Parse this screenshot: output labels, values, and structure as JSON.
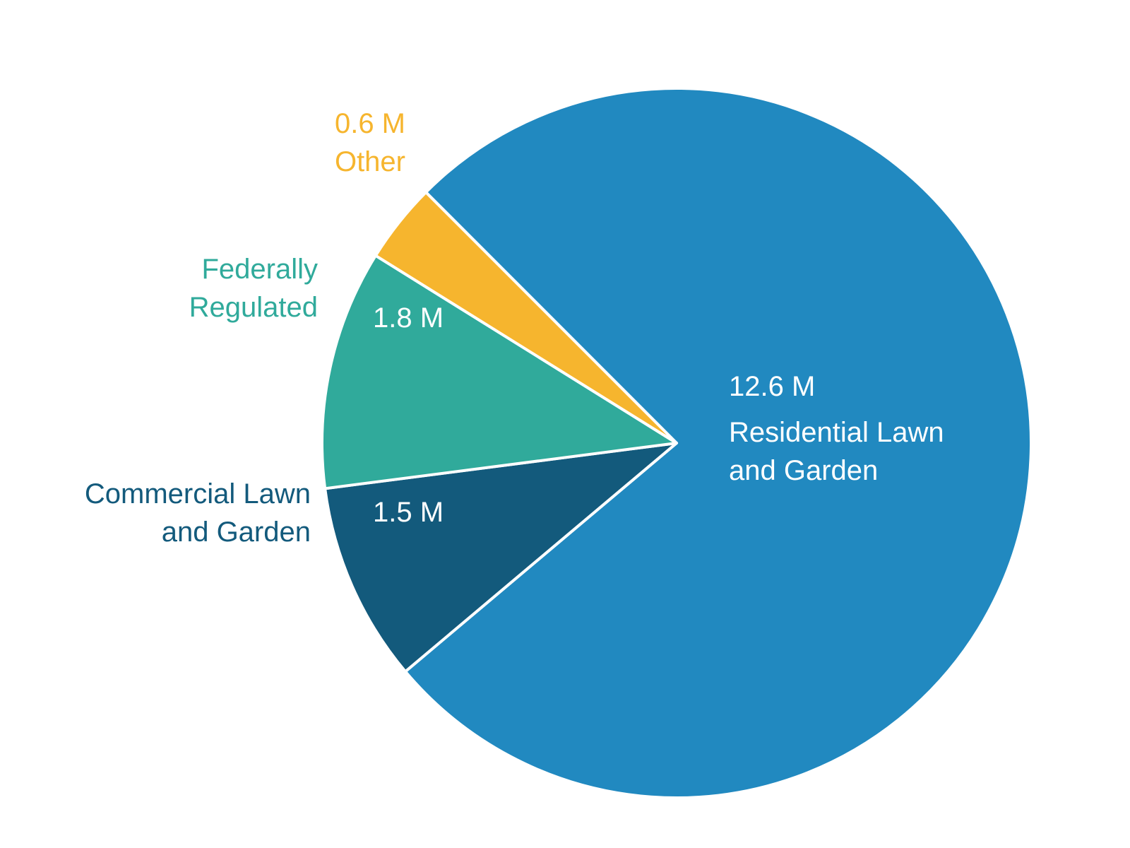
{
  "chart_data": {
    "type": "pie",
    "slices": [
      {
        "name": "Residential Lawn and Garden",
        "name_lines": [
          "Residential Lawn",
          "and Garden"
        ],
        "value": 12.6,
        "value_label": "12.6 M",
        "color": "#2189c0",
        "label_color": "#ffffff",
        "label_placement": "inside"
      },
      {
        "name": "Commercial Lawn and Garden",
        "name_lines": [
          "Commercial Lawn",
          "and Garden"
        ],
        "value": 1.5,
        "value_label": "1.5 M",
        "color": "#135a7c",
        "label_color": "#135a7c",
        "label_placement": "outside"
      },
      {
        "name": "Federally Regulated",
        "name_lines": [
          "Federally",
          "Regulated"
        ],
        "value": 1.8,
        "value_label": "1.8 M",
        "color": "#30aa9b",
        "label_color": "#30aa9b",
        "label_placement": "outside"
      },
      {
        "name": "Other",
        "name_lines": [
          "Other"
        ],
        "value": 0.6,
        "value_label": "0.6 M",
        "color": "#f6b52e",
        "label_color": "#f6b52e",
        "label_placement": "outside"
      }
    ]
  }
}
